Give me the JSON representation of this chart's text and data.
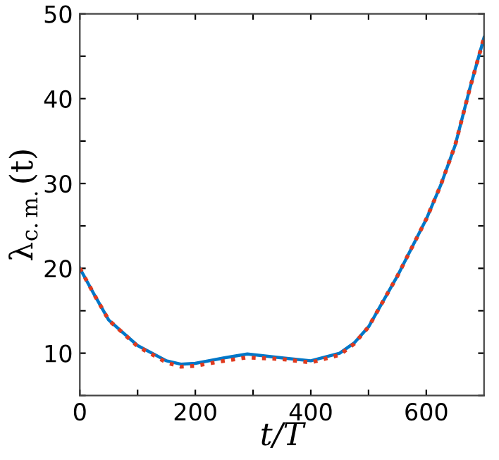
{
  "chart_data": {
    "type": "line",
    "xlabel": "t/T",
    "ylabel": "λ$_{c.m.}$(t)",
    "xlim": [
      0,
      700
    ],
    "ylim": [
      5,
      50
    ],
    "xticks": [
      0,
      {
        "value": 100,
        "label": null
      },
      200,
      {
        "value": 300,
        "label": null
      },
      400,
      {
        "value": 500,
        "label": null
      },
      600
    ],
    "yticks": [
      {
        "value": 5,
        "label": null
      },
      10,
      {
        "value": 15,
        "label": null
      },
      20,
      {
        "value": 25,
        "label": null
      },
      30,
      {
        "value": 35,
        "label": null
      },
      40,
      {
        "value": 45,
        "label": null
      },
      50
    ],
    "grid": false,
    "legend": false,
    "series": [
      {
        "color": "#0077c8",
        "line_style": "solid",
        "x": [
          0,
          25,
          50,
          100,
          150,
          175,
          200,
          250,
          290,
          350,
          400,
          450,
          475,
          500,
          550,
          600,
          625,
          650,
          675,
          700
        ],
        "values": [
          20,
          16.9,
          13.9,
          10.9,
          9.1,
          8.7,
          8.8,
          9.45,
          9.9,
          9.45,
          9.1,
          10.0,
          11.2,
          13.1,
          19.1,
          25.8,
          29.8,
          34.5,
          41.1,
          47.2
        ]
      },
      {
        "color": "#e03a1e",
        "line_style": "dotted",
        "x": [
          0,
          25,
          50,
          100,
          150,
          175,
          200,
          250,
          290,
          350,
          400,
          450,
          475,
          500,
          550,
          600,
          625,
          650,
          675,
          700
        ],
        "values": [
          20,
          16.9,
          13.9,
          10.8,
          8.9,
          8.4,
          8.5,
          9.1,
          9.5,
          9.3,
          8.9,
          9.8,
          11.1,
          13.1,
          19.1,
          25.8,
          29.8,
          34.5,
          41.1,
          47.2
        ]
      }
    ]
  }
}
